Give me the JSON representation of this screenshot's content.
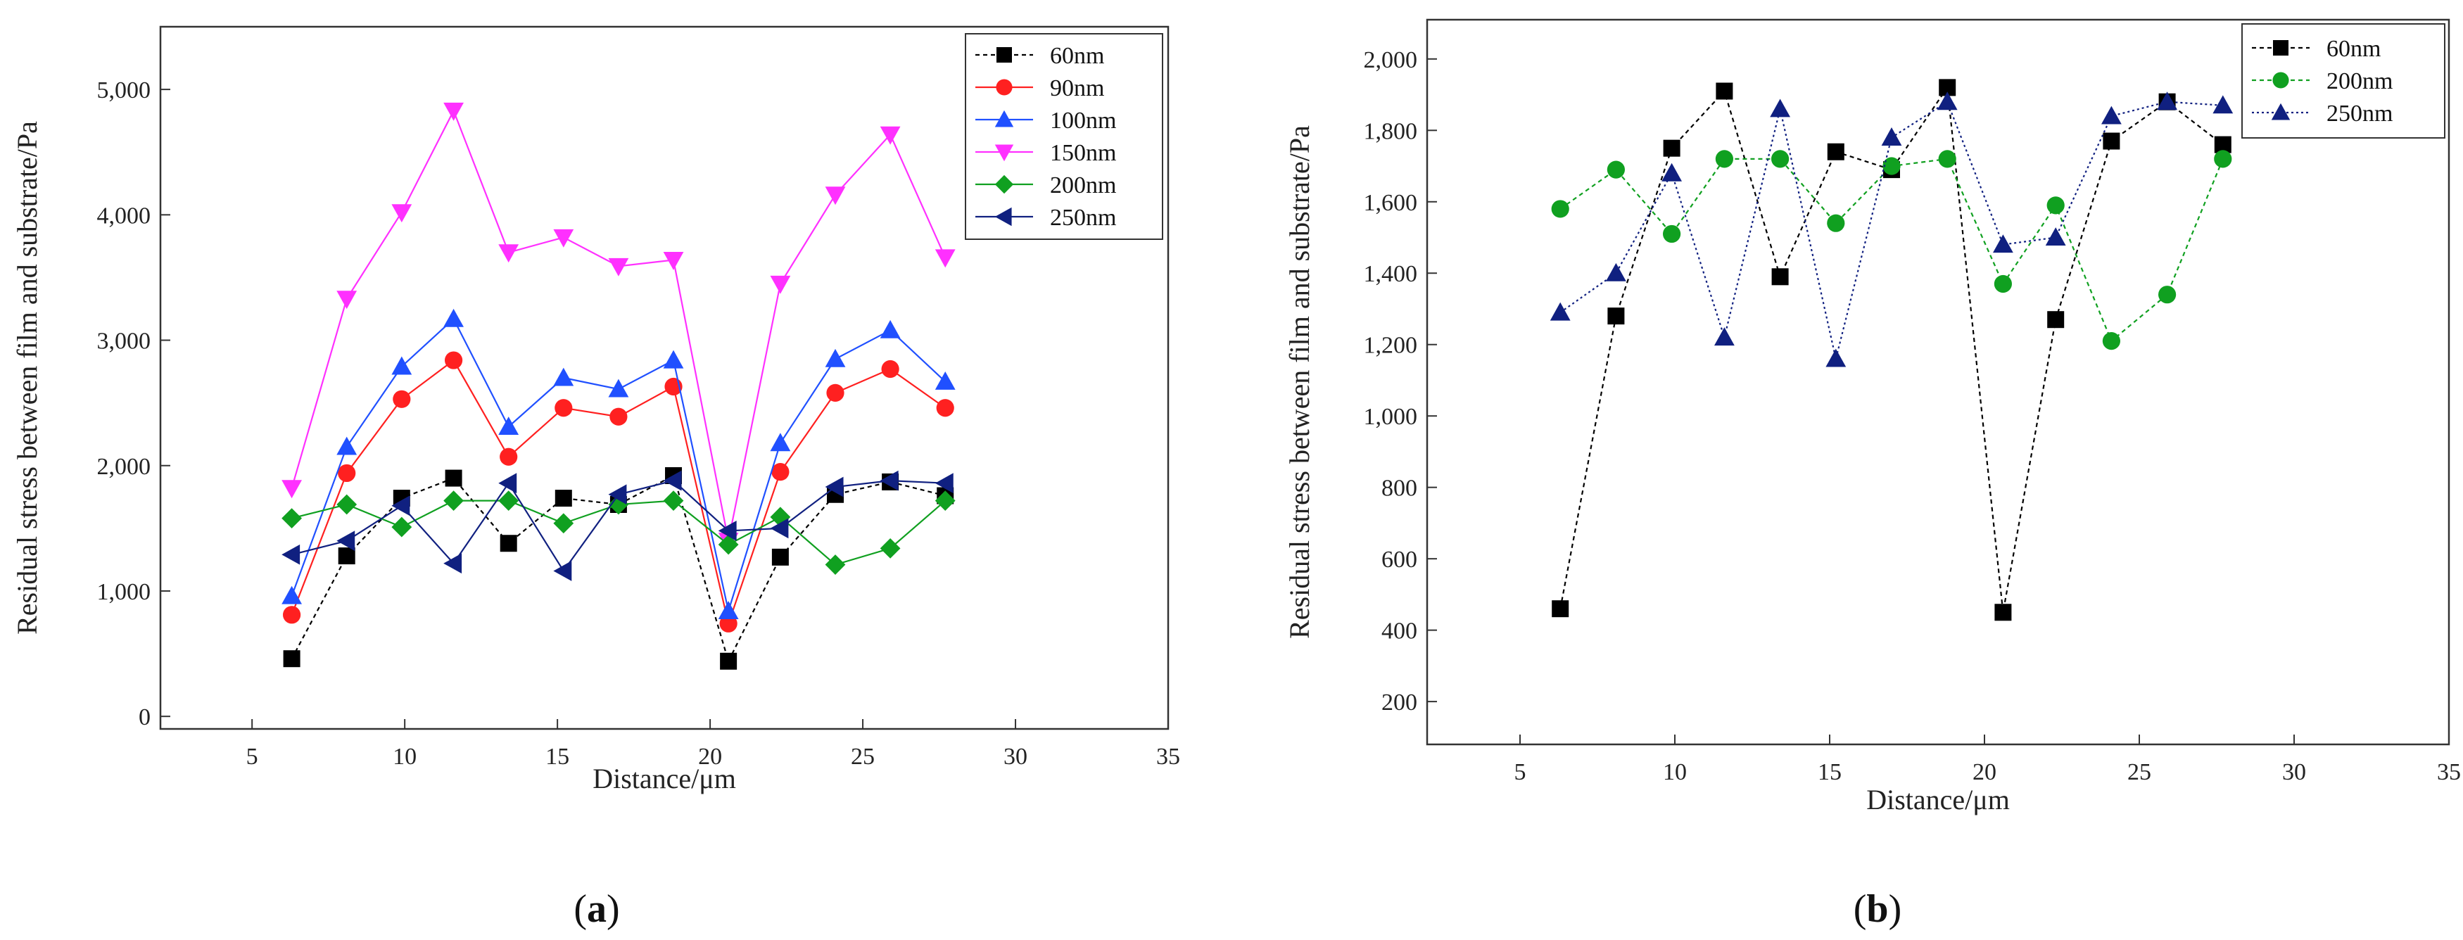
{
  "chart_data": [
    {
      "type": "line",
      "caption_open": "(",
      "caption_letter": "a",
      "caption_close": ")",
      "xlabel": "Distance/μm",
      "ylabel": "Residual stress between film and substrate/Pa",
      "xlim": [
        2,
        35
      ],
      "ylim": [
        -100,
        5500
      ],
      "xticks": [
        5,
        10,
        15,
        20,
        25,
        30,
        35
      ],
      "xtick_labels": [
        "5",
        "10",
        "15",
        "20",
        "25",
        "30",
        "35"
      ],
      "yticks": [
        0,
        1000,
        2000,
        3000,
        4000,
        5000
      ],
      "ytick_labels": [
        "0",
        "1,000",
        "2,000",
        "3,000",
        "4,000",
        "5,000"
      ],
      "x": [
        6.3,
        8.1,
        9.9,
        11.6,
        13.4,
        15.2,
        17.0,
        18.8,
        20.6,
        22.3,
        24.1,
        25.9,
        27.7
      ],
      "legend_position": "top-right",
      "series": [
        {
          "name": "60nm",
          "color": "#000000",
          "marker": "square",
          "dash": "6,5",
          "values": [
            460,
            1280,
            1740,
            1900,
            1380,
            1740,
            1690,
            1920,
            440,
            1270,
            1770,
            1870,
            1760
          ]
        },
        {
          "name": "90nm",
          "color": "#ff2020",
          "marker": "circle",
          "dash": "",
          "values": [
            810,
            1940,
            2530,
            2840,
            2070,
            2460,
            2390,
            2630,
            740,
            1950,
            2580,
            2770,
            2460
          ]
        },
        {
          "name": "100nm",
          "color": "#2050ff",
          "marker": "triangle-up",
          "dash": "",
          "values": [
            960,
            2150,
            2790,
            3170,
            2310,
            2700,
            2610,
            2840,
            840,
            2180,
            2850,
            3080,
            2670
          ]
        },
        {
          "name": "150nm",
          "color": "#ff30ff",
          "marker": "triangle-down",
          "dash": "",
          "values": [
            1820,
            3330,
            4020,
            4830,
            3700,
            3820,
            3590,
            3640,
            1400,
            3450,
            4160,
            4640,
            3660
          ]
        },
        {
          "name": "200nm",
          "color": "#10a020",
          "marker": "diamond",
          "dash": "",
          "values": [
            1580,
            1690,
            1510,
            1720,
            1720,
            1540,
            1690,
            1720,
            1370,
            1590,
            1210,
            1340,
            1720
          ]
        },
        {
          "name": "250nm",
          "color": "#102080",
          "marker": "triangle-left",
          "dash": "",
          "values": [
            1290,
            1400,
            1680,
            1220,
            1860,
            1160,
            1770,
            1880,
            1480,
            1500,
            1830,
            1880,
            1860
          ]
        }
      ]
    },
    {
      "type": "line",
      "caption_open": "(",
      "caption_letter": "b",
      "caption_close": ")",
      "xlabel": "Distance/μm",
      "ylabel": "Residual stress between film and substrate/Pa",
      "xlim": [
        2,
        35
      ],
      "ylim": [
        80,
        2110
      ],
      "xticks": [
        5,
        10,
        15,
        20,
        25,
        30,
        35
      ],
      "xtick_labels": [
        "5",
        "10",
        "15",
        "20",
        "25",
        "30",
        "35"
      ],
      "yticks": [
        200,
        400,
        600,
        800,
        1000,
        1200,
        1400,
        1600,
        1800,
        2000
      ],
      "ytick_labels": [
        "200",
        "400",
        "600",
        "800",
        "1,000",
        "1,200",
        "1,400",
        "1,600",
        "1,800",
        "2,000"
      ],
      "x": [
        6.3,
        8.1,
        9.9,
        11.6,
        13.4,
        15.2,
        17.0,
        18.8,
        20.6,
        22.3,
        24.1,
        25.9,
        27.7
      ],
      "legend_position": "top-right",
      "series": [
        {
          "name": "60nm",
          "color": "#000000",
          "marker": "square",
          "dash": "6,5",
          "values": [
            460,
            1280,
            1750,
            1910,
            1390,
            1740,
            1690,
            1920,
            450,
            1270,
            1770,
            1880,
            1760
          ]
        },
        {
          "name": "200nm",
          "color": "#10a020",
          "marker": "circle",
          "dash": "6,5",
          "values": [
            1580,
            1690,
            1510,
            1720,
            1720,
            1540,
            1700,
            1720,
            1370,
            1590,
            1210,
            1340,
            1720
          ]
        },
        {
          "name": "250nm",
          "color": "#102080",
          "marker": "triangle-up",
          "dash": "3,4",
          "values": [
            1290,
            1400,
            1680,
            1220,
            1860,
            1160,
            1780,
            1880,
            1480,
            1500,
            1840,
            1880,
            1870
          ]
        }
      ]
    }
  ]
}
